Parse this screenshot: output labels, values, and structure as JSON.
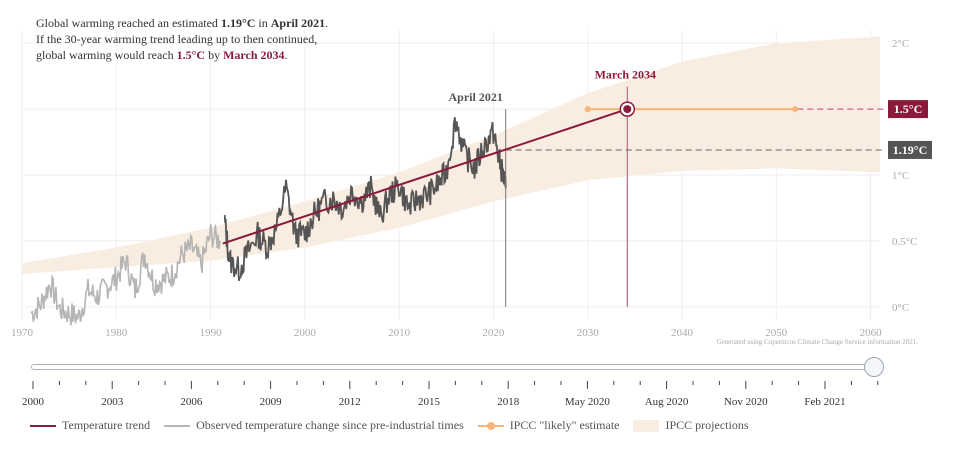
{
  "annotation": {
    "line1_pre": "Global warming reached an estimated ",
    "line1_val": "1.19°C",
    "line1_mid": " in ",
    "line1_date": "April 2021",
    "line1_end": ".",
    "line2": "If the 30-year warming trend leading up to then continued,",
    "line3_pre": "global warming would reach ",
    "line3_val": "1.5°C",
    "line3_mid": " by ",
    "line3_date": "March 2034",
    "line3_end": "."
  },
  "credit": "Generated using Copernicus Climate Change Service information 2021.",
  "chart_data": {
    "type": "line",
    "xlim": [
      1970,
      2061
    ],
    "ylim": [
      -0.1,
      2.1
    ],
    "x_ticks": [
      1970,
      1980,
      1990,
      2000,
      2010,
      2020,
      2030,
      2040,
      2050,
      2060
    ],
    "y_ticks": [
      0,
      0.5,
      1,
      1.5,
      2
    ],
    "y_tick_labels": [
      "0°C",
      "0.5°C",
      "1°C",
      "1.5°C",
      "2°C"
    ],
    "grid": true,
    "observed_grey": {
      "name": "Observed temperature change since pre-industrial times",
      "color": "#b5b5b5",
      "x_range": [
        1971,
        1991.5
      ],
      "points": [
        [
          1971,
          -0.05
        ],
        [
          1972,
          0.02
        ],
        [
          1973,
          0.18
        ],
        [
          1974,
          -0.02
        ],
        [
          1975,
          -0.05
        ],
        [
          1976,
          -0.08
        ],
        [
          1977,
          0.12
        ],
        [
          1978,
          0.08
        ],
        [
          1979,
          0.15
        ],
        [
          1980,
          0.22
        ],
        [
          1981,
          0.35
        ],
        [
          1982,
          0.12
        ],
        [
          1983,
          0.4
        ],
        [
          1984,
          0.18
        ],
        [
          1985,
          0.2
        ],
        [
          1986,
          0.25
        ],
        [
          1987,
          0.4
        ],
        [
          1988,
          0.45
        ],
        [
          1989,
          0.32
        ],
        [
          1990,
          0.55
        ],
        [
          1991,
          0.5
        ]
      ]
    },
    "observed_dark": {
      "color": "#555555",
      "x_range": [
        1991.5,
        2021.3
      ],
      "points": [
        [
          1991.5,
          0.65
        ],
        [
          1992,
          0.35
        ],
        [
          1993,
          0.28
        ],
        [
          1994,
          0.42
        ],
        [
          1995,
          0.55
        ],
        [
          1996,
          0.45
        ],
        [
          1997,
          0.6
        ],
        [
          1998,
          0.9
        ],
        [
          1999,
          0.55
        ],
        [
          2000,
          0.55
        ],
        [
          2001,
          0.7
        ],
        [
          2002,
          0.8
        ],
        [
          2003,
          0.82
        ],
        [
          2004,
          0.75
        ],
        [
          2005,
          0.88
        ],
        [
          2006,
          0.8
        ],
        [
          2007,
          0.9
        ],
        [
          2008,
          0.68
        ],
        [
          2009,
          0.85
        ],
        [
          2010,
          0.92
        ],
        [
          2011,
          0.75
        ],
        [
          2012,
          0.82
        ],
        [
          2013,
          0.85
        ],
        [
          2014,
          0.92
        ],
        [
          2015,
          1.02
        ],
        [
          2016,
          1.42
        ],
        [
          2017,
          1.15
        ],
        [
          2018,
          1.05
        ],
        [
          2019,
          1.22
        ],
        [
          2020,
          1.32
        ],
        [
          2020.5,
          1.15
        ],
        [
          2021,
          1.0
        ],
        [
          2021.3,
          0.9
        ]
      ]
    },
    "trend": {
      "name": "Temperature trend",
      "color": "#8b1a3a",
      "start": [
        1991.3,
        0.48
      ],
      "end": [
        2034.2,
        1.5
      ]
    },
    "ipcc_likely": {
      "name": "IPCC \"likely\" estimate",
      "color": "#f5b57a",
      "range": [
        2030,
        2052
      ],
      "value": 1.5
    },
    "ipcc_band": {
      "name": "IPCC projections",
      "color": "#f9ece1",
      "upper": [
        [
          1970,
          0.33
        ],
        [
          1980,
          0.45
        ],
        [
          1990,
          0.6
        ],
        [
          2000,
          0.8
        ],
        [
          2010,
          1.02
        ],
        [
          2020,
          1.3
        ],
        [
          2030,
          1.62
        ],
        [
          2040,
          1.86
        ],
        [
          2050,
          2.0
        ],
        [
          2061,
          2.05
        ]
      ],
      "lower": [
        [
          1970,
          0.25
        ],
        [
          1980,
          0.3
        ],
        [
          1990,
          0.35
        ],
        [
          2000,
          0.45
        ],
        [
          2010,
          0.6
        ],
        [
          2020,
          0.8
        ],
        [
          2030,
          0.96
        ],
        [
          2040,
          1.03
        ],
        [
          2050,
          1.05
        ],
        [
          2061,
          1.02
        ]
      ]
    },
    "markers": {
      "april2021": {
        "label": "April 2021",
        "x": 2021.3,
        "value": 1.19,
        "value_label": "1.19°C"
      },
      "march2034": {
        "label": "March 2034",
        "x": 2034.2,
        "value": 1.5,
        "value_label": "1.5°C"
      }
    }
  },
  "timeline": {
    "labels": [
      "2000",
      "2003",
      "2006",
      "2009",
      "2012",
      "2015",
      "2018",
      "May 2020",
      "Aug 2020",
      "Nov 2020",
      "Feb 2021"
    ]
  },
  "legend": [
    {
      "label": "Temperature trend",
      "color": "#8b1a3a",
      "kind": "line"
    },
    {
      "label": "Observed temperature change since pre-industrial times",
      "color": "#b5b5b5",
      "kind": "line"
    },
    {
      "label": "IPCC \"likely\" estimate",
      "color": "#f5b57a",
      "kind": "dot-line"
    },
    {
      "label": "IPCC projections",
      "color": "#f9ece1",
      "kind": "box"
    }
  ]
}
